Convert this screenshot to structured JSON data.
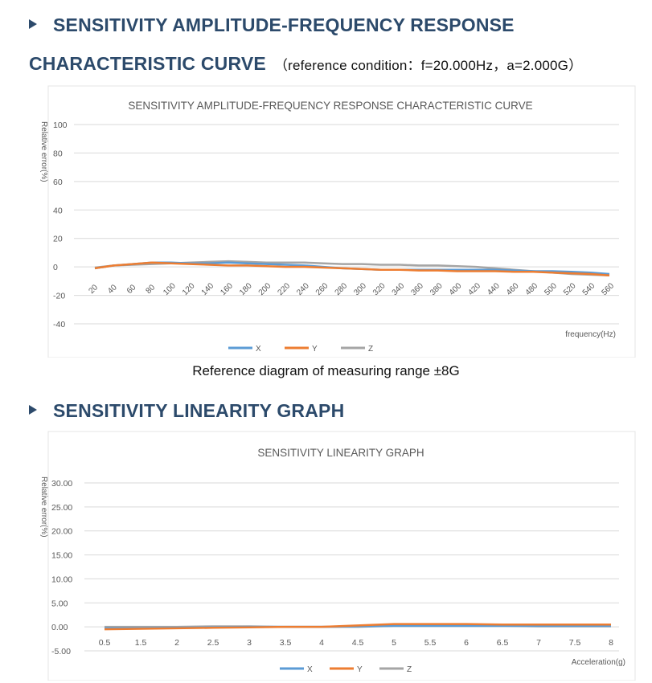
{
  "heading1": {
    "line1": "SENSITIVITY AMPLITUDE-FREQUENCY RESPONSE",
    "line2": "CHARACTERISTIC CURVE",
    "condition": "（reference condition：f=20.000Hz，a=2.000G）"
  },
  "caption1": "Reference diagram of measuring range ±8G",
  "heading2": {
    "title": "SENSITIVITY LINEARITY GRAPH"
  },
  "colors": {
    "X": "#5b9bd5",
    "Y": "#ed7d31",
    "Z": "#a5a5a5",
    "grid": "#d9d9d9",
    "text": "#595959",
    "heading": "#2c4a6b"
  },
  "chart_data": [
    {
      "type": "line",
      "title": "SENSITIVITY AMPLITUDE-FREQUENCY RESPONSE CHARACTERISTIC CURVE",
      "xlabel": "frequency(Hz)",
      "ylabel": "Relative error(%)",
      "ylim": [
        -40,
        100
      ],
      "yticks": [
        "100",
        "80",
        "60",
        "40",
        "20",
        "0",
        "-20",
        "-40"
      ],
      "grid": true,
      "legend": "bottom-center",
      "categories": [
        "20",
        "40",
        "60",
        "80",
        "100",
        "120",
        "140",
        "160",
        "180",
        "200",
        "220",
        "240",
        "260",
        "280",
        "300",
        "320",
        "340",
        "360",
        "380",
        "400",
        "420",
        "440",
        "460",
        "480",
        "500",
        "520",
        "540",
        "560"
      ],
      "series": [
        {
          "name": "X",
          "values": [
            -1,
            1,
            2,
            3,
            3,
            2.5,
            2.5,
            3,
            2.5,
            2,
            1.5,
            1,
            0,
            -1,
            -1.5,
            -2,
            -2,
            -2,
            -2,
            -2,
            -2,
            -2,
            -2.5,
            -3,
            -3,
            -3.5,
            -4,
            -5
          ]
        },
        {
          "name": "Y",
          "values": [
            -1,
            1,
            2,
            3,
            2.5,
            2,
            1.5,
            1,
            1,
            0.5,
            0,
            0,
            -0.5,
            -1,
            -1.5,
            -2,
            -2,
            -2.5,
            -2.5,
            -3,
            -3,
            -3,
            -3.5,
            -3.5,
            -4,
            -4.5,
            -5,
            -6
          ]
        },
        {
          "name": "Z",
          "values": [
            -0.5,
            1,
            1.5,
            2,
            2.5,
            3,
            3.5,
            4,
            3.5,
            3,
            3,
            3,
            2.5,
            2,
            2,
            1.5,
            1.5,
            1,
            1,
            0.5,
            0,
            -1,
            -2,
            -3,
            -4,
            -5,
            -5.5,
            -6
          ]
        }
      ]
    },
    {
      "type": "line",
      "title": "SENSITIVITY LINEARITY GRAPH",
      "xlabel": "Acceleration(g)",
      "ylabel": "Relative error(%)",
      "ylim": [
        -5,
        30
      ],
      "yticks": [
        "30.00",
        "25.00",
        "20.00",
        "15.00",
        "10.00",
        "5.00",
        "0.00",
        "-5.00"
      ],
      "grid": true,
      "legend": "bottom-center",
      "categories": [
        "0.5",
        "1.5",
        "2",
        "2.5",
        "3",
        "3.5",
        "4",
        "4.5",
        "5",
        "5.5",
        "6",
        "6.5",
        "7",
        "7.5",
        "8"
      ],
      "series": [
        {
          "name": "X",
          "values": [
            -0.3,
            -0.3,
            -0.2,
            -0.1,
            0,
            0,
            0,
            0.1,
            0.2,
            0.2,
            0.2,
            0.2,
            0.2,
            0.2,
            0.2
          ]
        },
        {
          "name": "Y",
          "values": [
            -0.5,
            -0.4,
            -0.3,
            -0.2,
            -0.1,
            0,
            0,
            0.3,
            0.6,
            0.6,
            0.6,
            0.5,
            0.5,
            0.5,
            0.5
          ]
        },
        {
          "name": "Z",
          "values": [
            0,
            0,
            0,
            0.1,
            0.1,
            0,
            0,
            0,
            0.2,
            0.2,
            0.2,
            0.2,
            0.1,
            0.1,
            0.1
          ]
        }
      ]
    }
  ]
}
